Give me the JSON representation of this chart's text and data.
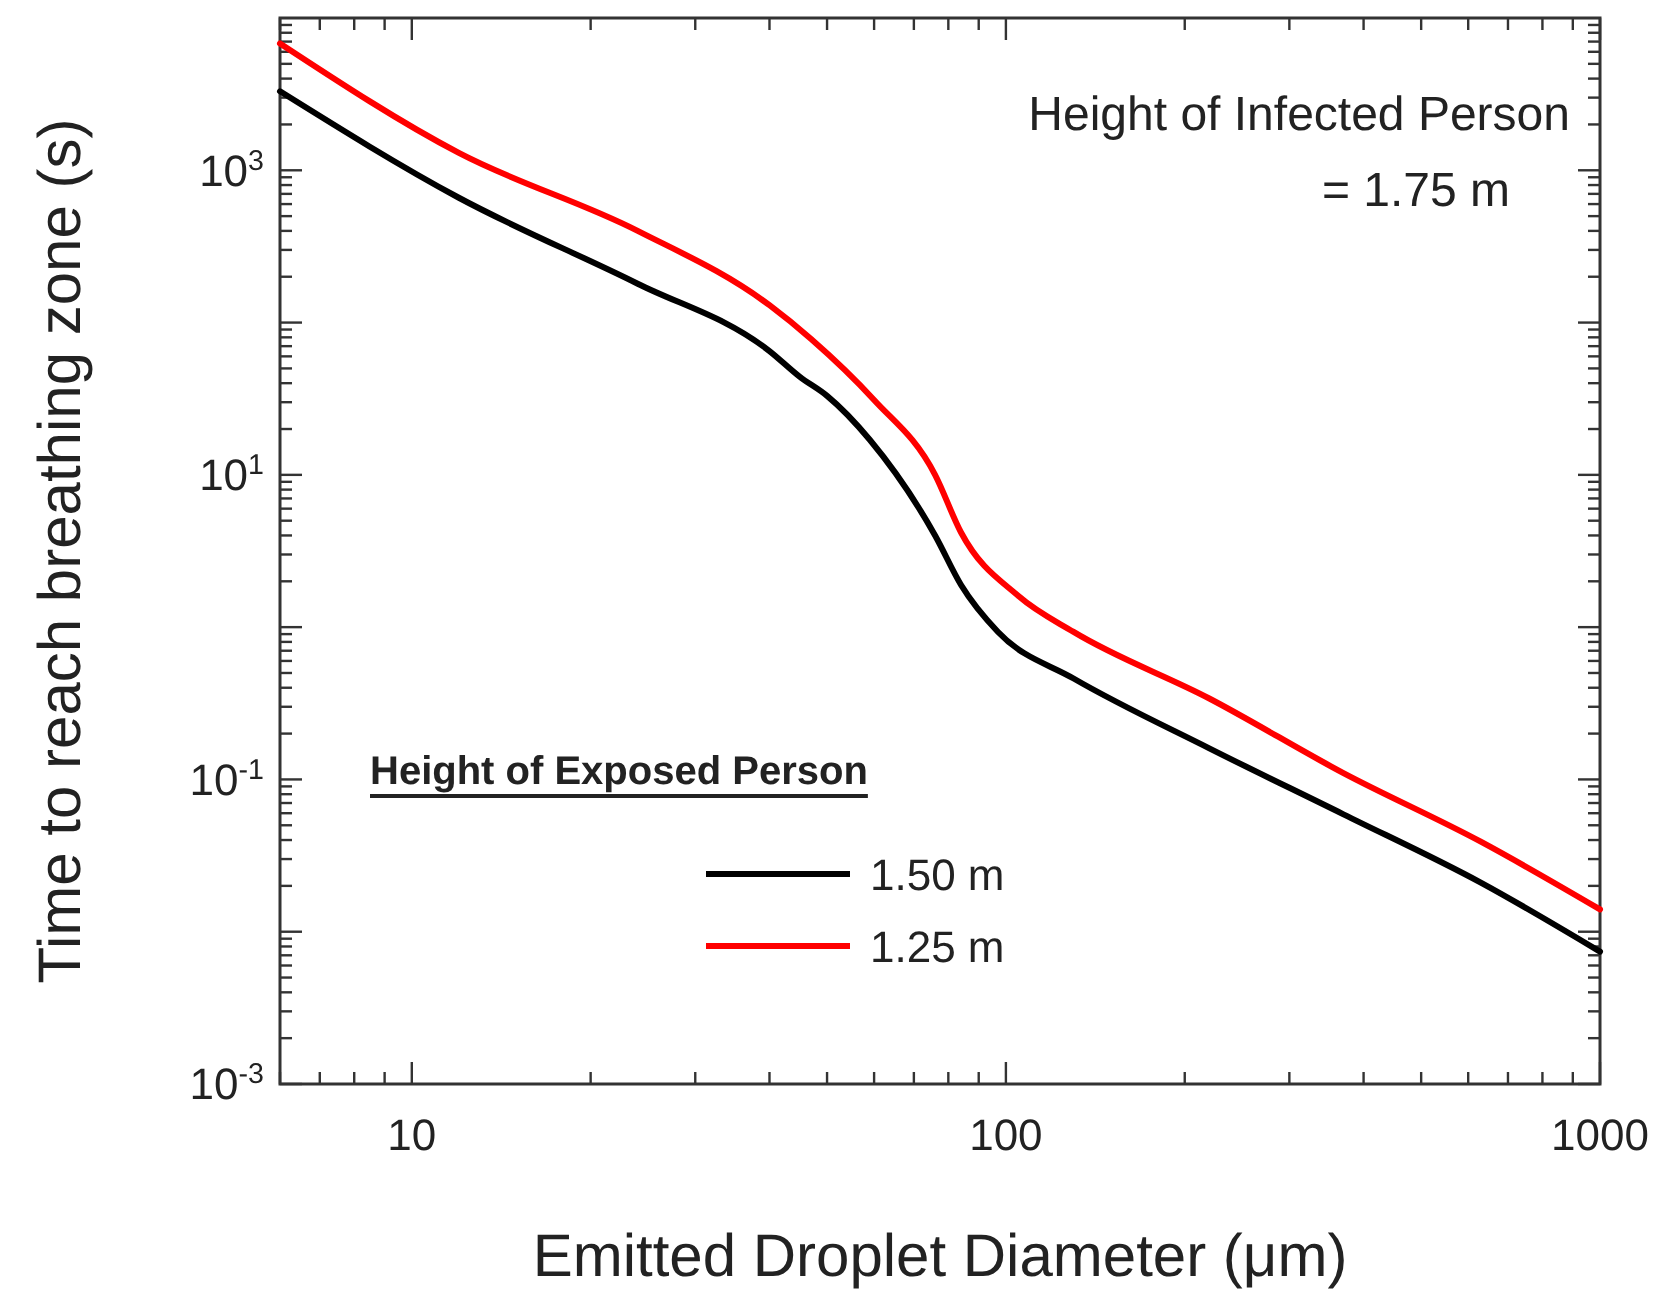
{
  "chart_data": {
    "type": "line",
    "xlabel": "Emitted Droplet Diameter (μm)",
    "ylabel": "Time to reach breathing zone (s)",
    "log": "xy",
    "xlim": [
      6,
      1000
    ],
    "ylim": [
      0.001,
      10000
    ],
    "xticks": [
      10,
      100,
      1000
    ],
    "yticks": [
      {
        "value": 0.001,
        "label": "10$^{-3}$"
      },
      {
        "value": 0.01,
        "label": null
      },
      {
        "value": 0.1,
        "label": "10$^{-1}$"
      },
      {
        "value": 1,
        "label": null
      },
      {
        "value": 10,
        "label": "10$^{1}$"
      },
      {
        "value": 100,
        "label": null
      },
      {
        "value": 1000,
        "label": "10$^{3}$"
      }
    ],
    "grid": false,
    "legend": "bottom left",
    "legend_title": "Height of Exposed Person",
    "line_style": "solid",
    "marker": "none",
    "annotations": [
      "Height of Infected Person",
      "= 1.75 m"
    ],
    "series": [
      {
        "name": "1.50 m",
        "color": "#000000",
        "x": [
          6,
          12,
          24,
          40,
          45,
          50,
          59,
          76,
          84,
          97,
          130,
          220,
          370,
          630,
          1000
        ],
        "values": [
          3300,
          660,
          180,
          65,
          44,
          33,
          17,
          4.0,
          1.9,
          0.93,
          0.46,
          0.16,
          0.059,
          0.021,
          0.0074
        ]
      },
      {
        "name": "1.25 m",
        "color": "#ff0000",
        "x": [
          6,
          12,
          24,
          40,
          47,
          60,
          76,
          84,
          105,
          130,
          220,
          370,
          630,
          1000
        ],
        "values": [
          6800,
          1300,
          400,
          130,
          78,
          31,
          10,
          4.2,
          1.6,
          0.93,
          0.34,
          0.11,
          0.039,
          0.014
        ]
      }
    ]
  }
}
